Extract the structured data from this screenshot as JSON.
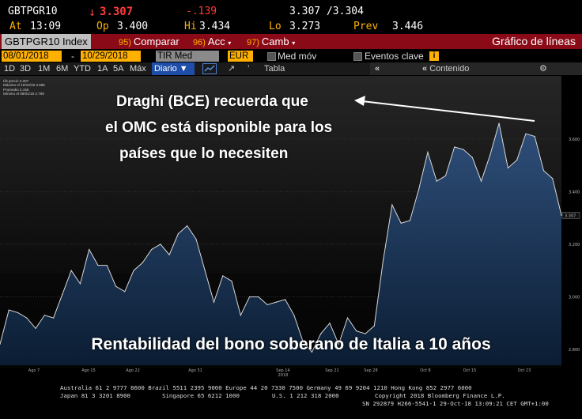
{
  "quote": {
    "ticker": "GBTPGR10",
    "arrow": "↓",
    "last": "3.307",
    "change": "-.139",
    "bid_ask": "3.307 /3.304",
    "at_label": "At",
    "at_time": "13:09",
    "op_label": "Op",
    "op": "3.400",
    "hi_label": "Hi",
    "hi": "3.434",
    "lo_label": "Lo",
    "lo": "3.273",
    "prev_label": "Prev",
    "prev": "3.446"
  },
  "titlebar": {
    "security": "GBTPGR10 Index",
    "compare_num": "95)",
    "compare": "Comparar",
    "acc_num": "96)",
    "acc": "Acc",
    "camb_num": "97)",
    "camb": "Camb",
    "title": "Gráfico de líneas"
  },
  "row2": {
    "start_date": "08/01/2018",
    "end_date": "10/29/2018",
    "field": "TIR Med",
    "currency": "EUR",
    "mov": "Med móv",
    "events": "Eventos clave"
  },
  "row3": {
    "periods": [
      "1D",
      "3D",
      "1M",
      "6M",
      "YTD",
      "1A",
      "5A",
      "Máx"
    ],
    "frequency": "Diario",
    "table": "Tabla",
    "content": "Contenido"
  },
  "legend": [
    "Últ precio        3.307",
    "Máximo el 10/10/18 3.686",
    "Promedio           3.156",
    "Mínimo el 08/01/18 2.789"
  ],
  "chart_data": {
    "type": "area",
    "x_ticks": [
      "Ago 7",
      "Ago 15",
      "Ago 22",
      "Ago 31",
      "Sep 14",
      "Sep 21",
      "Sep 28",
      "Oct 8",
      "Oct 15",
      "Oct 23"
    ],
    "year_label": "2018",
    "y_ticks": [
      "2.800",
      "3.000",
      "3.200",
      "3.400",
      "3.600"
    ],
    "ylim": [
      2.74,
      3.84
    ],
    "values": [
      2.82,
      2.95,
      2.94,
      2.92,
      2.88,
      2.93,
      2.92,
      3.01,
      3.1,
      3.05,
      3.18,
      3.12,
      3.12,
      3.04,
      3.02,
      3.1,
      3.13,
      3.18,
      3.2,
      3.16,
      3.24,
      3.27,
      3.22,
      3.1,
      2.98,
      3.08,
      3.06,
      2.93,
      3.0,
      3.0,
      2.97,
      2.98,
      2.99,
      2.93,
      2.83,
      2.79,
      2.86,
      2.9,
      2.82,
      2.92,
      2.87,
      2.86,
      2.89,
      3.14,
      3.35,
      3.28,
      3.29,
      3.41,
      3.55,
      3.44,
      3.46,
      3.57,
      3.56,
      3.53,
      3.44,
      3.54,
      3.66,
      3.49,
      3.52,
      3.62,
      3.61,
      3.48,
      3.45,
      3.31
    ],
    "last_label": "3.307"
  },
  "annotation": {
    "line1": "Draghi (BCE) recuerda que",
    "line2": "el OMC está disponible para los",
    "line3": "países que lo necesiten"
  },
  "caption": "Rentabilidad del bono soberano de Italia a 10 años",
  "footer": {
    "line1": "Australia 61 2 9777 8600 Brazil 5511 2395 9000 Europe 44 20 7330 7500 Germany 49 69 9204 1210 Hong Kong 852 2977 6000",
    "line2a": "Japan 81 3 3201 8900",
    "line2b": "Singapore 65 6212 1000",
    "line2c": "U.S. 1 212 318 2000",
    "line2d": "Copyright 2018 Bloomberg Finance L.P.",
    "line3": "SN 292879 H266-5541-1 29-Oct-18 13:09:21 CET  GMT+1:00"
  }
}
